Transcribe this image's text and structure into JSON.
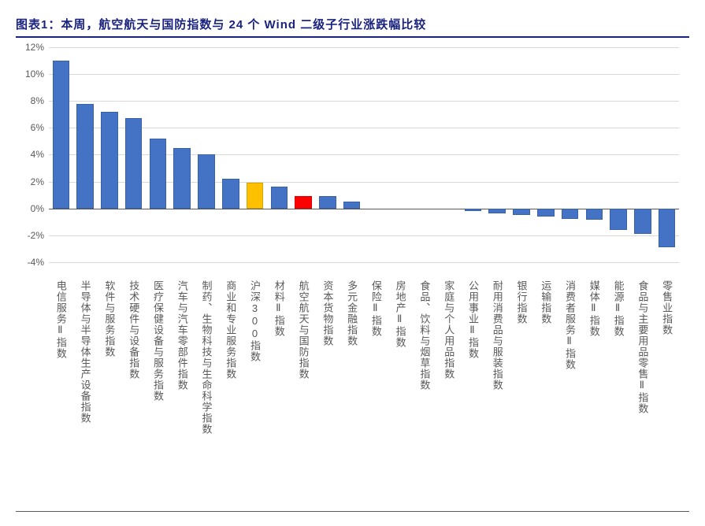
{
  "title": "图表1：本周，航空航天与国防指数与 24 个 Wind 二级子行业涨跌幅比较",
  "chart": {
    "type": "bar",
    "y": {
      "min": -5,
      "max": 12,
      "tick_step": 2,
      "tick_suffix": "%"
    },
    "grid_color": "#d9d9d9",
    "axis_color": "#595959",
    "default_bar_color": "#4472c4",
    "categories": [
      {
        "label": "电信服务Ⅱ指数",
        "value": 11.0
      },
      {
        "label": "半导体与半导体生产设备指数",
        "value": 7.8
      },
      {
        "label": "软件与服务指数",
        "value": 7.2
      },
      {
        "label": "技术硬件与设备指数",
        "value": 6.7
      },
      {
        "label": "医疗保健设备与服务指数",
        "value": 5.2
      },
      {
        "label": "汽车与汽车零部件指数",
        "value": 4.5
      },
      {
        "label": "制药、生物科技与生命科学指数",
        "value": 4.0
      },
      {
        "label": "商业和专业服务指数",
        "value": 2.2
      },
      {
        "label": "沪深300指数",
        "value": 1.9,
        "color": "#ffc000"
      },
      {
        "label": "材料Ⅱ指数",
        "value": 1.6
      },
      {
        "label": "航空航天与国防指数",
        "value": 0.9,
        "color": "#ff0000"
      },
      {
        "label": "资本货物指数",
        "value": 0.9
      },
      {
        "label": "多元金融指数",
        "value": 0.5
      },
      {
        "label": "保险Ⅱ指数",
        "value": 0.0
      },
      {
        "label": "房地产Ⅱ指数",
        "value": 0.0
      },
      {
        "label": "食品、饮料与烟草指数",
        "value": 0.0
      },
      {
        "label": "家庭与个人用品指数",
        "value": 0.0
      },
      {
        "label": "公用事业Ⅱ指数",
        "value": -0.2
      },
      {
        "label": "耐用消费品与服装指数",
        "value": -0.35
      },
      {
        "label": "银行指数",
        "value": -0.5
      },
      {
        "label": "运输指数",
        "value": -0.6
      },
      {
        "label": "消费者服务Ⅱ指数",
        "value": -0.8
      },
      {
        "label": "媒体Ⅱ指数",
        "value": -0.85
      },
      {
        "label": "能源Ⅱ指数",
        "value": -1.6
      },
      {
        "label": "食品与主要用品零售Ⅱ指数",
        "value": -1.9
      },
      {
        "label": "零售业指数",
        "value": -2.9
      }
    ]
  },
  "colors": {
    "title": "#1a237e",
    "label_text": "#595959",
    "background": "#ffffff"
  },
  "fonts": {
    "title_size_pt": 15,
    "axis_label_size_pt": 12,
    "xlabel_size_pt": 13
  }
}
